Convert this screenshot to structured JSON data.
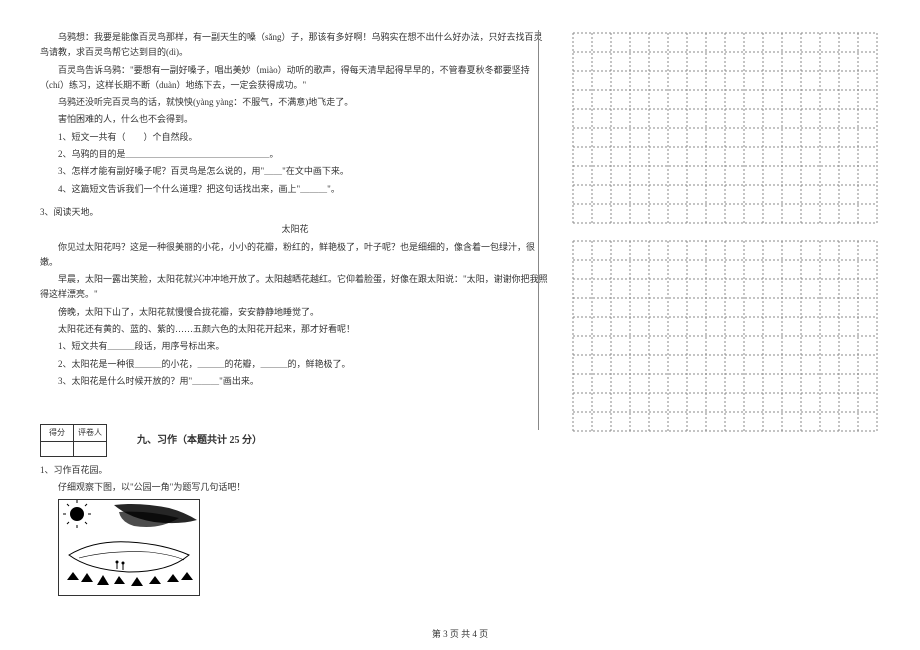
{
  "passage1": {
    "p1": "乌鸦想：我要是能像百灵鸟那样，有一副天生的嗓（sǎng）子，那该有多好啊！乌鸦实在想不出什么好办法，只好去找百灵鸟请教，求百灵鸟帮它达到目的(dì)。",
    "p2": "百灵鸟告诉乌鸦：\"要想有一副好嗓子，唱出美妙（miào）动听的歌声，得每天清早起得早早的，不管春夏秋冬都要坚持（chí）练习，这样长期不断（duàn）地练下去，一定会获得成功。\"",
    "p3": "乌鸦还没听完百灵鸟的话，就怏怏(yàng yàng：不服气，不满意)地飞走了。",
    "p4": "害怕困难的人，什么也不会得到。",
    "q1": "1、短文一共有（　　）个自然段。",
    "q2": "2、乌鸦的目的是＿＿＿＿＿＿＿＿＿＿＿＿＿＿＿＿。",
    "q3": "3、怎样才能有副好嗓子呢？百灵鸟是怎么说的，用\"＿＿\"在文中画下来。",
    "q4": "4、这篇短文告诉我们一个什么道理？把这句话找出来，画上\"＿＿＿\"。"
  },
  "passage2": {
    "header": "3、阅读天地。",
    "title": "太阳花",
    "p1": "你见过太阳花吗？这是一种很美丽的小花，小小的花瓣，粉红的，鲜艳极了，叶子呢？也是细细的，像含着一包绿汁，很嫩。",
    "p2": "早晨，太阳一露出笑脸，太阳花就兴冲冲地开放了。太阳越晒花越红。它仰着脸蛋，好像在跟太阳说：\"太阳，谢谢你把我照得这样漂亮。\"",
    "p3": "傍晚，太阳下山了，太阳花就慢慢合拢花瓣，安安静静地睡觉了。",
    "p4": "太阳花还有黄的、蓝的、紫的……五颜六色的太阳花开起来，那才好看呢！",
    "q1": "1、短文共有＿＿＿段话，用序号标出来。",
    "q2": "2、太阳花是一种很＿＿＿的小花，＿＿＿的花瓣，＿＿＿的，鲜艳极了。",
    "q3": "3、太阳花是什么时候开放的？用\"＿＿＿\"画出来。"
  },
  "section9": {
    "score_label1": "得分",
    "score_label2": "评卷人",
    "title": "九、习作（本题共计 25 分）",
    "q1": "1、习作百花园。",
    "q1_sub": "仔细观察下图，以\"公园一角\"为题写几句话吧！"
  },
  "footer": "第 3 页  共 4 页",
  "grid": {
    "cols": 16,
    "rows1": 10,
    "rows2": 10,
    "cell": 19,
    "stroke": "#888888",
    "dash": "2,2"
  },
  "illustration": {
    "sun_color": "#000000",
    "line_color": "#000000"
  }
}
